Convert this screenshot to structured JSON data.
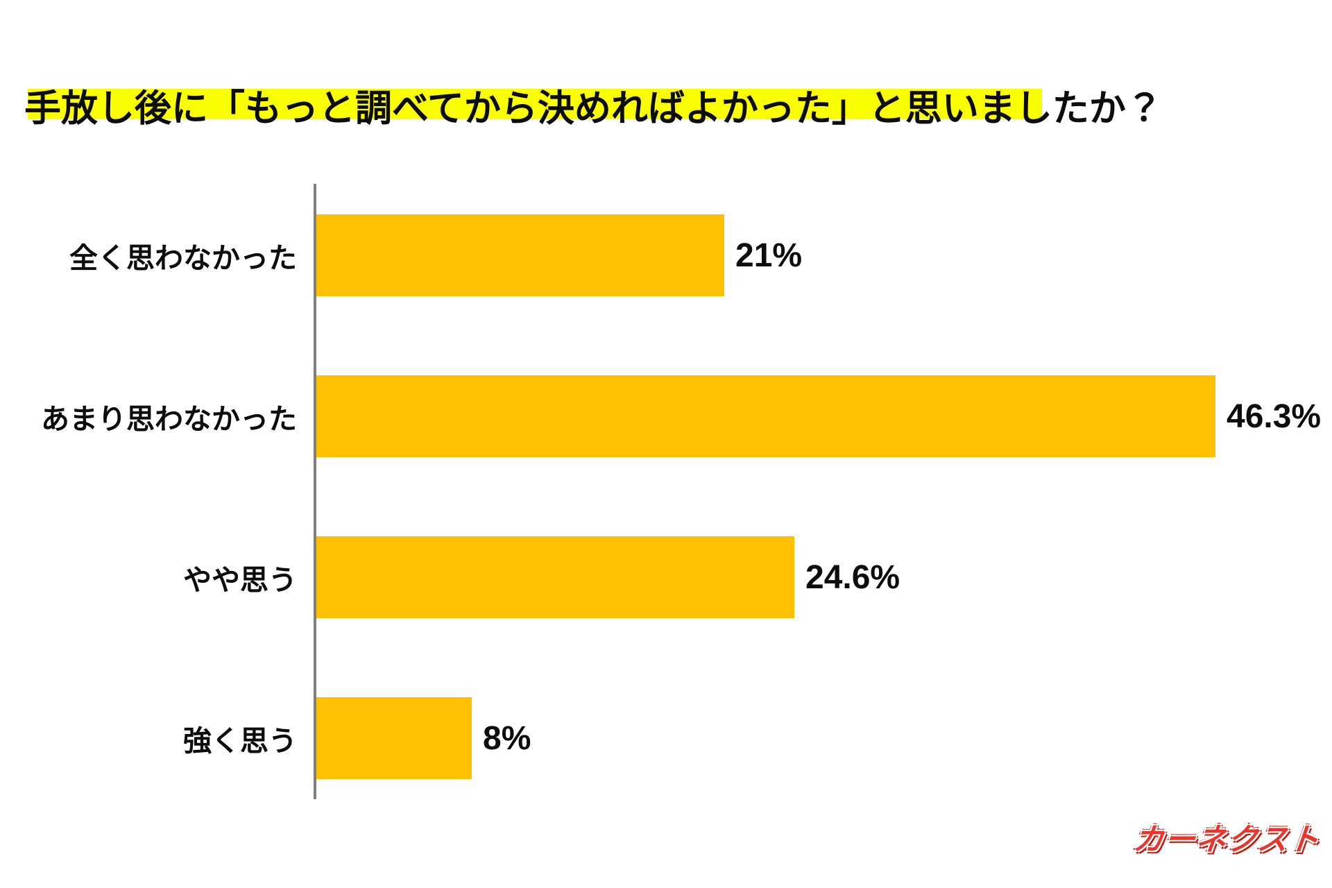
{
  "title": {
    "text": "手放し後に「もっと調べてから決めればよかった」と思いましたか？",
    "highlight_color": "#FAFF00"
  },
  "chart_data": {
    "type": "bar",
    "orientation": "horizontal",
    "categories": [
      "全く思わなかった",
      "あまり思わなかった",
      "やや思う",
      "強く思う"
    ],
    "values": [
      21,
      46.3,
      24.6,
      8
    ],
    "value_labels": [
      "21%",
      "46.3%",
      "24.6%",
      "8%"
    ],
    "bar_color": "#FFC000",
    "axis_color": "#7f7f7f",
    "xlim": [
      0,
      50
    ],
    "grid": false,
    "legend": false,
    "xlabel": "",
    "ylabel": ""
  },
  "logo": {
    "text": "カーネクスト",
    "color": "#E8362D"
  }
}
